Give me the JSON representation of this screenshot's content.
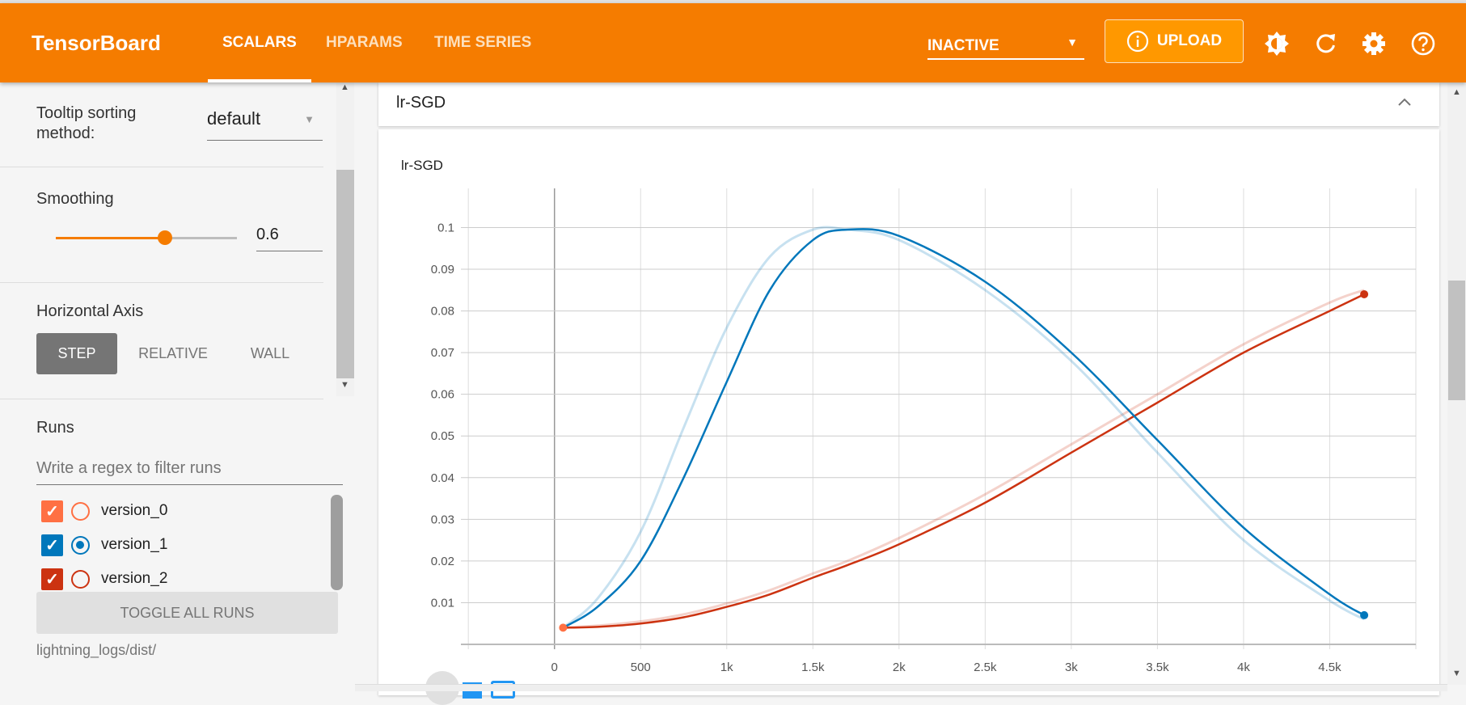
{
  "header": {
    "title": "TensorBoard",
    "tabs": [
      {
        "label": "SCALARS",
        "active": true
      },
      {
        "label": "HPARAMS"
      },
      {
        "label": "TIME SERIES"
      }
    ],
    "run_selector": "INACTIVE",
    "upload_label": "UPLOAD",
    "icons": [
      "brightness-icon",
      "refresh-icon",
      "settings-icon",
      "help-icon"
    ],
    "color": "#f57c00"
  },
  "sidebar": {
    "tooltip_label": "Tooltip sorting method:",
    "tooltip_value": "default",
    "smoothing_label": "Smoothing",
    "smoothing_value": "0.6",
    "smoothing_fraction": 0.6,
    "axis_label": "Horizontal Axis",
    "axis_options": [
      "STEP",
      "RELATIVE",
      "WALL"
    ],
    "axis_selected": "STEP",
    "runs_label": "Runs",
    "runs_filter_placeholder": "Write a regex to filter runs",
    "runs": [
      {
        "name": "version_0",
        "color": "#ff7043",
        "checked": true,
        "selected": false
      },
      {
        "name": "version_1",
        "color": "#0077bb",
        "checked": true,
        "selected": true
      },
      {
        "name": "version_2",
        "color": "#cc3311",
        "checked": true,
        "selected": false
      }
    ],
    "toggle_label": "TOGGLE ALL RUNS",
    "log_dir": "lightning_logs/dist/"
  },
  "card": {
    "header_title": "lr-SGD"
  },
  "chart_data": {
    "type": "line",
    "title": "lr-SGD",
    "xlim": [
      -515,
      5000
    ],
    "ylim": [
      0,
      0.1094
    ],
    "grid": true,
    "x_ticks": [
      0,
      500,
      1000,
      1500,
      2000,
      2500,
      3000,
      3500,
      4000,
      4500
    ],
    "x_tick_labels": [
      "0",
      "500",
      "1k",
      "1.5k",
      "2k",
      "2.5k",
      "3k",
      "3.5k",
      "4k",
      "4.5k"
    ],
    "y_ticks": [
      0.01,
      0.02,
      0.03,
      0.04,
      0.05,
      0.06,
      0.07,
      0.08,
      0.09,
      0.1
    ],
    "y_tick_labels": [
      "0.01",
      "0.02",
      "0.03",
      "0.04",
      "0.05",
      "0.06",
      "0.07",
      "0.08",
      "0.09",
      "0.1"
    ],
    "x": [
      50,
      250,
      500,
      750,
      1000,
      1250,
      1500,
      1700,
      2000,
      2500,
      3000,
      3500,
      4000,
      4500,
      4700
    ],
    "series": [
      {
        "run": "version_0",
        "color": "#ff7043",
        "smoothed": [
          0.004
        ],
        "raw": [
          0.004
        ],
        "x": [
          50
        ]
      },
      {
        "run": "version_1",
        "color": "#0077bb",
        "smoothed": [
          0.004,
          0.009,
          0.02,
          0.04,
          0.063,
          0.085,
          0.097,
          0.0995,
          0.098,
          0.087,
          0.07,
          0.049,
          0.028,
          0.012,
          0.007
        ],
        "raw": [
          0.004,
          0.011,
          0.027,
          0.052,
          0.076,
          0.093,
          0.0995,
          0.0995,
          0.097,
          0.085,
          0.068,
          0.046,
          0.025,
          0.0105,
          0.006
        ]
      },
      {
        "run": "version_2",
        "color": "#cc3311",
        "smoothed": [
          0.004,
          0.0042,
          0.005,
          0.0065,
          0.009,
          0.012,
          0.016,
          0.019,
          0.024,
          0.034,
          0.046,
          0.058,
          0.07,
          0.08,
          0.084
        ],
        "raw": [
          0.004,
          0.0045,
          0.0055,
          0.0072,
          0.0098,
          0.013,
          0.017,
          0.02,
          0.0255,
          0.036,
          0.048,
          0.06,
          0.072,
          0.082,
          0.085
        ]
      }
    ]
  }
}
